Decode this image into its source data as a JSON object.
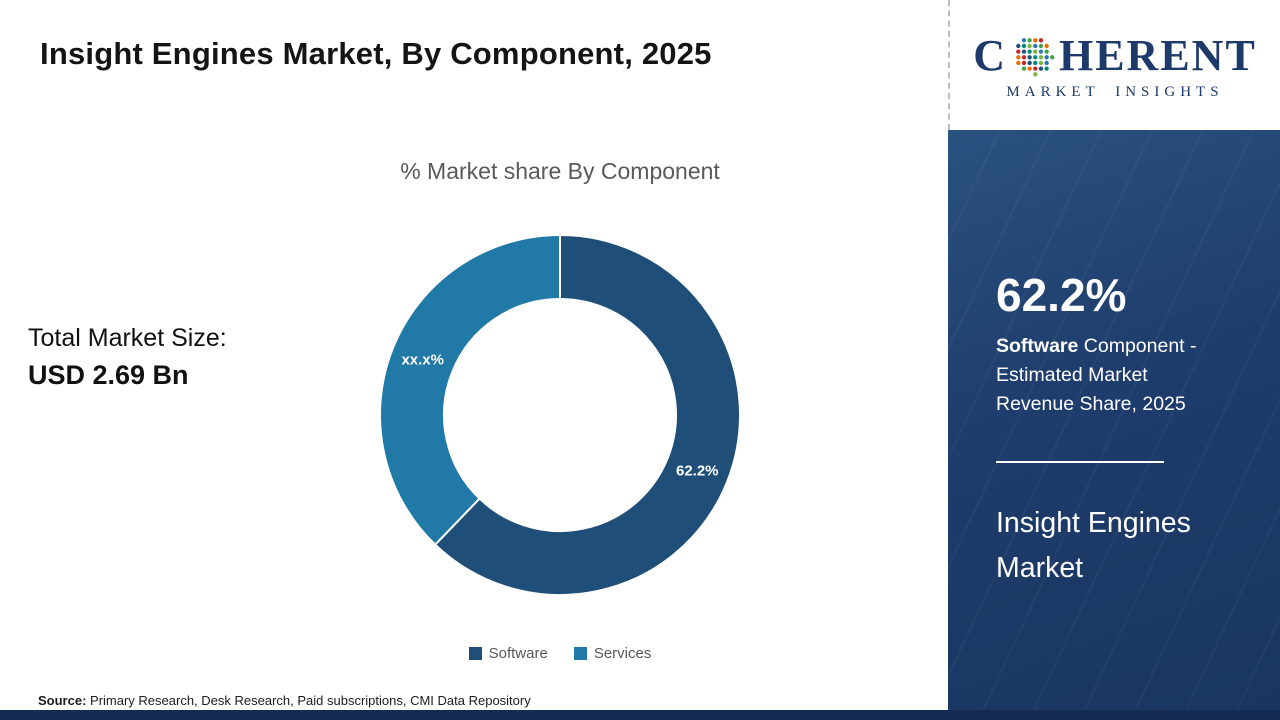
{
  "page": {
    "title": "Insight Engines Market, By Component, 2025",
    "source_label": "Source:",
    "source_text": " Primary Research, Desk Research, Paid subscriptions, CMI Data Repository"
  },
  "left_panel": {
    "total_market_label": "Total Market Size:",
    "total_market_value": "USD 2.69 Bn"
  },
  "chart_data": {
    "type": "pie",
    "donut": true,
    "title": "% Market share By Component",
    "categories": [
      "Software",
      "Services"
    ],
    "values": [
      62.2,
      37.8
    ],
    "slice_labels": [
      "62.2%",
      "xx.x%"
    ],
    "colors": [
      "#1f4e79",
      "#2079a7"
    ],
    "legend_position": "bottom"
  },
  "sidebar": {
    "panel_color": "#1e3c6c",
    "stat_value": "62.2%",
    "stat_desc_bold": "Software",
    "stat_desc_rest": " Component - Estimated Market Revenue Share, 2025",
    "panel_title": "Insight Engines Market"
  },
  "logo": {
    "text_c": "C",
    "text_rest": "HERENT",
    "subtext": "MARKET INSIGHTS",
    "color": "#1e3a6a",
    "dot_colors": [
      "#2e75b6",
      "#43a047",
      "#ef6c00",
      "#c62828",
      "#1f4e79",
      "#00897b",
      "#7cb342"
    ]
  }
}
